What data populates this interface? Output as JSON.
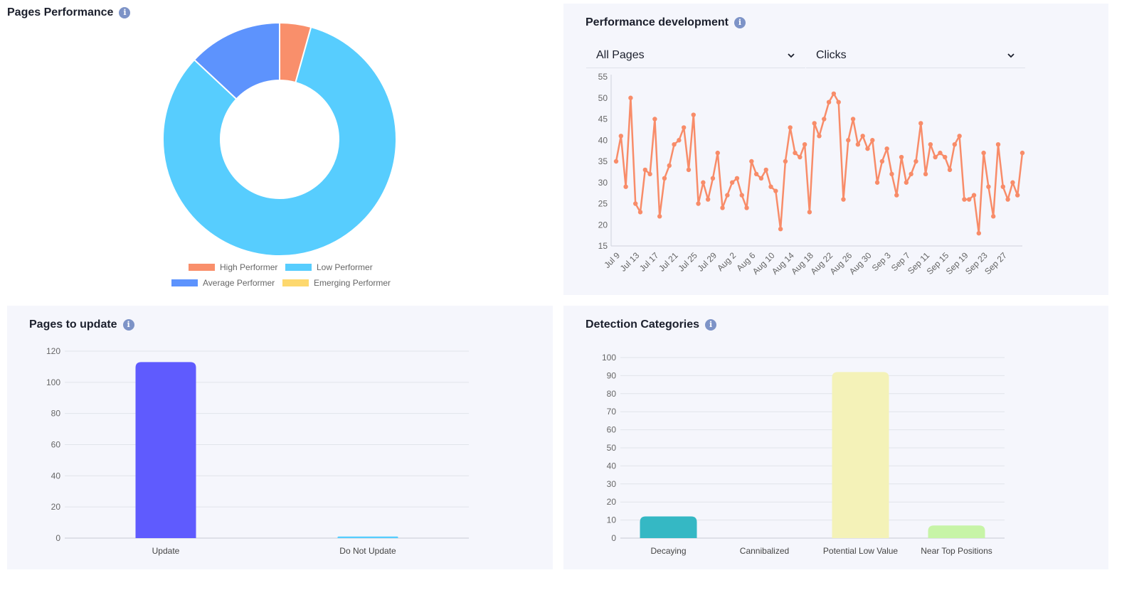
{
  "icons": {
    "info": "info-icon",
    "dropdown": "chevron-down-icon"
  },
  "pages_performance": {
    "title": "Pages Performance",
    "info_symbol": "i"
  },
  "performance_development": {
    "title": "Performance development",
    "info_symbol": "i",
    "page_filter": {
      "selected": "All Pages"
    },
    "metric_filter": {
      "selected": "Clicks"
    }
  },
  "pages_to_update": {
    "title": "Pages to update",
    "info_symbol": "i"
  },
  "detection_categories": {
    "title": "Detection Categories",
    "info_symbol": "i"
  },
  "chart_data": [
    {
      "id": "pages-performance",
      "type": "pie",
      "donut": true,
      "title": "",
      "legend_position": "bottom",
      "series": [
        {
          "name": "High Performer",
          "value": 6,
          "color": "#f98f6b"
        },
        {
          "name": "Low Performer",
          "value": 114,
          "color": "#57cdfe"
        },
        {
          "name": "Average Performer",
          "value": 18,
          "color": "#5d93fd"
        },
        {
          "name": "Emerging Performer",
          "value": 0,
          "color": "#fdd86e"
        }
      ]
    },
    {
      "id": "performance-development",
      "type": "line",
      "title": "",
      "xlabel": "",
      "ylabel": "",
      "ylim": [
        15,
        55
      ],
      "yticks": [
        15,
        20,
        25,
        30,
        35,
        40,
        45,
        50,
        55
      ],
      "grid": false,
      "color": "#f88c69",
      "x_tick_labels": [
        "Jul 9",
        "Jul 13",
        "Jul 17",
        "Jul 21",
        "Jul 25",
        "Jul 29",
        "Aug 2",
        "Aug 6",
        "Aug 10",
        "Aug 14",
        "Aug 18",
        "Aug 22",
        "Aug 26",
        "Aug 30",
        "Sep 3",
        "Sep 7",
        "Sep 11",
        "Sep 15",
        "Sep 19",
        "Sep 23",
        "Sep 27"
      ],
      "values": [
        35,
        41,
        29,
        50,
        25,
        23,
        33,
        32,
        45,
        22,
        31,
        34,
        39,
        40,
        43,
        33,
        46,
        25,
        30,
        26,
        31,
        37,
        24,
        27,
        30,
        31,
        27,
        24,
        35,
        32,
        31,
        33,
        29,
        28,
        19,
        35,
        43,
        37,
        36,
        39,
        23,
        44,
        41,
        45,
        49,
        51,
        49,
        26,
        40,
        45,
        39,
        41,
        38,
        40,
        30,
        35,
        38,
        32,
        27,
        36,
        30,
        32,
        35,
        44,
        32,
        39,
        36,
        37,
        36,
        33,
        39,
        41,
        26,
        26,
        27,
        18,
        37,
        29,
        22,
        39,
        29,
        26,
        30,
        27,
        37
      ]
    },
    {
      "id": "pages-to-update",
      "type": "bar",
      "title": "",
      "xlabel": "",
      "ylabel": "",
      "ylim": [
        0,
        120
      ],
      "yticks": [
        0,
        20,
        40,
        60,
        80,
        100,
        120
      ],
      "grid": true,
      "categories": [
        "Update",
        "Do Not Update"
      ],
      "values": [
        113,
        1
      ],
      "colors": [
        "#5f5bfe",
        "#57cdfe"
      ]
    },
    {
      "id": "detection-categories",
      "type": "bar",
      "title": "",
      "xlabel": "",
      "ylabel": "",
      "ylim": [
        0,
        100
      ],
      "yticks": [
        0,
        10,
        20,
        30,
        40,
        50,
        60,
        70,
        80,
        90,
        100
      ],
      "grid": true,
      "categories": [
        "Decaying",
        "Cannibalized",
        "Potential Low Value",
        "Near Top Positions"
      ],
      "values": [
        12,
        0,
        92,
        7
      ],
      "colors": [
        "#35b8c4",
        "#9aa8c8",
        "#f4f2b8",
        "#c7f4a7"
      ]
    }
  ]
}
